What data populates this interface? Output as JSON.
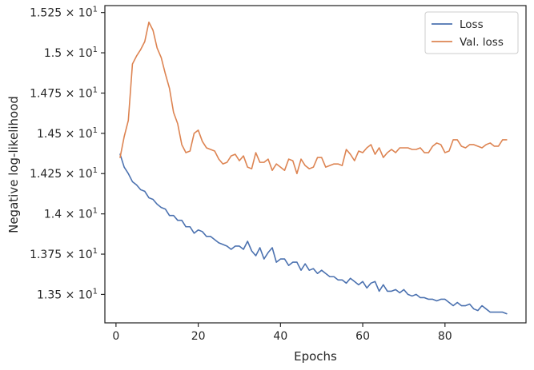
{
  "chart_data": {
    "type": "line",
    "title": "",
    "xlabel": "Epochs",
    "ylabel": "Negative log-likelihood",
    "xlim": [
      -2.7,
      99.7
    ],
    "ylim": [
      13.3235,
      15.293
    ],
    "grid": false,
    "legend_position": "top-right",
    "x_ticks": [
      {
        "value": 0,
        "label": "0"
      },
      {
        "value": 20,
        "label": "20"
      },
      {
        "value": 40,
        "label": "40"
      },
      {
        "value": 60,
        "label": "60"
      },
      {
        "value": 80,
        "label": "80"
      }
    ],
    "y_ticks": [
      {
        "value": 13.5,
        "mantissa": "1.35",
        "base": "10",
        "exp": "1"
      },
      {
        "value": 13.75,
        "mantissa": "1.375",
        "base": "10",
        "exp": "1"
      },
      {
        "value": 14.0,
        "mantissa": "1.4",
        "base": "10",
        "exp": "1"
      },
      {
        "value": 14.25,
        "mantissa": "1.425",
        "base": "10",
        "exp": "1"
      },
      {
        "value": 14.5,
        "mantissa": "1.45",
        "base": "10",
        "exp": "1"
      },
      {
        "value": 14.75,
        "mantissa": "1.475",
        "base": "10",
        "exp": "1"
      },
      {
        "value": 15.0,
        "mantissa": "1.5",
        "base": "10",
        "exp": "1"
      },
      {
        "value": 15.25,
        "mantissa": "1.525",
        "base": "10",
        "exp": "1"
      }
    ],
    "x": [
      1,
      2,
      3,
      4,
      5,
      6,
      7,
      8,
      9,
      10,
      11,
      12,
      13,
      14,
      15,
      16,
      17,
      18,
      19,
      20,
      21,
      22,
      23,
      24,
      25,
      26,
      27,
      28,
      29,
      30,
      31,
      32,
      33,
      34,
      35,
      36,
      37,
      38,
      39,
      40,
      41,
      42,
      43,
      44,
      45,
      46,
      47,
      48,
      49,
      50,
      51,
      52,
      53,
      54,
      55,
      56,
      57,
      58,
      59,
      60,
      61,
      62,
      63,
      64,
      65,
      66,
      67,
      68,
      69,
      70,
      71,
      72,
      73,
      74,
      75,
      76,
      77,
      78,
      79,
      80,
      81,
      82,
      83,
      84,
      85,
      86,
      87,
      88,
      89,
      90,
      91,
      92,
      93,
      94,
      95
    ],
    "series": [
      {
        "name": "Loss",
        "color": "#4c72b0",
        "values": [
          14.37,
          14.29,
          14.25,
          14.2,
          14.18,
          14.15,
          14.14,
          14.1,
          14.09,
          14.06,
          14.04,
          14.03,
          13.99,
          13.99,
          13.96,
          13.96,
          13.92,
          13.92,
          13.88,
          13.9,
          13.89,
          13.86,
          13.86,
          13.84,
          13.82,
          13.81,
          13.8,
          13.78,
          13.8,
          13.8,
          13.78,
          13.83,
          13.77,
          13.74,
          13.79,
          13.72,
          13.76,
          13.79,
          13.7,
          13.72,
          13.72,
          13.68,
          13.7,
          13.7,
          13.65,
          13.69,
          13.65,
          13.66,
          13.63,
          13.65,
          13.63,
          13.61,
          13.61,
          13.59,
          13.59,
          13.57,
          13.6,
          13.58,
          13.56,
          13.58,
          13.54,
          13.57,
          13.58,
          13.52,
          13.56,
          13.52,
          13.52,
          13.53,
          13.51,
          13.53,
          13.5,
          13.49,
          13.5,
          13.48,
          13.48,
          13.47,
          13.47,
          13.46,
          13.47,
          13.47,
          13.45,
          13.43,
          13.45,
          13.43,
          13.43,
          13.44,
          13.41,
          13.4,
          13.43,
          13.41,
          13.39,
          13.39,
          13.39,
          13.39,
          13.38
        ]
      },
      {
        "name": "Val. loss",
        "color": "#dd8452",
        "values": [
          14.35,
          14.48,
          14.58,
          14.93,
          14.98,
          15.02,
          15.07,
          15.19,
          15.14,
          15.03,
          14.97,
          14.87,
          14.78,
          14.63,
          14.56,
          14.43,
          14.38,
          14.39,
          14.5,
          14.52,
          14.45,
          14.41,
          14.4,
          14.39,
          14.34,
          14.31,
          14.32,
          14.36,
          14.37,
          14.33,
          14.36,
          14.29,
          14.28,
          14.38,
          14.32,
          14.32,
          14.34,
          14.27,
          14.31,
          14.29,
          14.27,
          14.34,
          14.33,
          14.25,
          14.34,
          14.3,
          14.28,
          14.29,
          14.35,
          14.35,
          14.29,
          14.3,
          14.31,
          14.31,
          14.3,
          14.4,
          14.37,
          14.33,
          14.39,
          14.38,
          14.41,
          14.43,
          14.37,
          14.41,
          14.35,
          14.38,
          14.4,
          14.38,
          14.41,
          14.41,
          14.41,
          14.4,
          14.4,
          14.41,
          14.38,
          14.38,
          14.42,
          14.44,
          14.43,
          14.38,
          14.39,
          14.46,
          14.46,
          14.42,
          14.41,
          14.43,
          14.43,
          14.42,
          14.41,
          14.43,
          14.44,
          14.42,
          14.42,
          14.46,
          14.46
        ]
      }
    ]
  }
}
